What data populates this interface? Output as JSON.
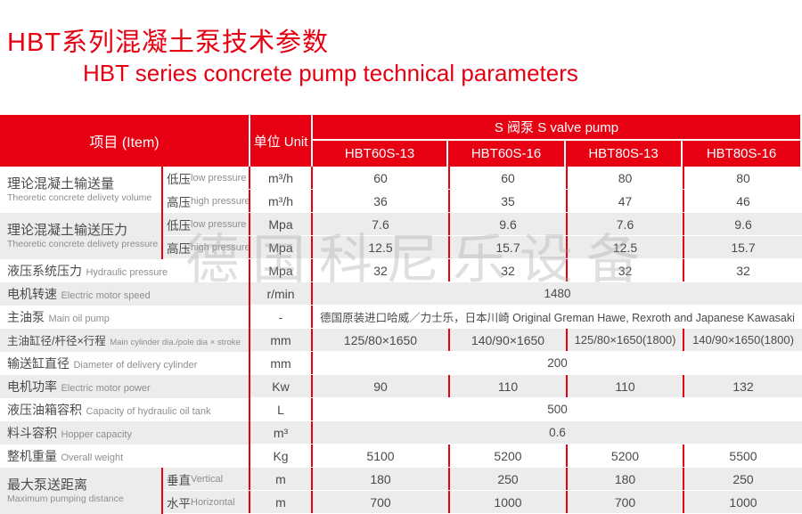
{
  "page": {
    "title_zh": "HBT系列混凝土泵技术参数",
    "title_en": "HBT series concrete pump technical parameters"
  },
  "watermark": "德国科尼乐设备",
  "colors": {
    "accent_red": "#e60012",
    "stripe_gray": "#ececec"
  },
  "table": {
    "header": {
      "item": "项目 (Item)",
      "unit": "单位 Unit",
      "group": "S 阀泵 S valve pump",
      "models": [
        "HBT60S-13",
        "HBT60S-16",
        "HBT80S-13",
        "HBT80S-16"
      ]
    },
    "groups": [
      {
        "zh": "理论混凝土输送量",
        "en": "Theoretic concrete delivety volume",
        "rows": [
          {
            "sub_zh": "低压",
            "sub_en": "low pressure",
            "unit": "m³/h",
            "values": [
              "60",
              "60",
              "80",
              "80"
            ]
          },
          {
            "sub_zh": "高压",
            "sub_en": "high pressure",
            "unit": "m³/h",
            "values": [
              "36",
              "35",
              "47",
              "46"
            ]
          }
        ]
      },
      {
        "zh": "理论混凝土输送压力",
        "en": "Theoretic concrete delivety pressure",
        "rows": [
          {
            "sub_zh": "低压",
            "sub_en": "low pressure",
            "unit": "Mpa",
            "values": [
              "7.6",
              "9.6",
              "7.6",
              "9.6"
            ]
          },
          {
            "sub_zh": "高压",
            "sub_en": "high pressure",
            "unit": "Mpa",
            "values": [
              "12.5",
              "15.7",
              "12.5",
              "15.7"
            ]
          }
        ]
      },
      {
        "zh": "液压系统压力",
        "en": "Hydraulic pressure",
        "rows": [
          {
            "unit": "Mpa",
            "values": [
              "32",
              "32",
              "32",
              "32"
            ]
          }
        ]
      },
      {
        "zh": "电机转速",
        "en": "Electric motor speed",
        "rows": [
          {
            "unit": "r/min",
            "span": "1480"
          }
        ]
      },
      {
        "zh": "主油泵",
        "en": "Main oil pump",
        "rows": [
          {
            "unit": "-",
            "span": "德国原装进口哈威／力士乐，日本川崎 Original Greman Hawe, Rexroth and Japanese Kawasaki"
          }
        ]
      },
      {
        "zh": "主油缸径/杆径×行程",
        "en": "Main cylinder dia./pole dia × stroke",
        "rows": [
          {
            "unit": "mm",
            "values": [
              "125/80×1650",
              "140/90×1650",
              "125/80×1650(1800)",
              "140/90×1650(1800)"
            ]
          }
        ]
      },
      {
        "zh": "输送缸直径",
        "en": "Diameter of delivery cylinder",
        "rows": [
          {
            "unit": "mm",
            "span": "200"
          }
        ]
      },
      {
        "zh": "电机功率",
        "en": "Electric motor power",
        "rows": [
          {
            "unit": "Kw",
            "values": [
              "90",
              "110",
              "110",
              "132"
            ]
          }
        ]
      },
      {
        "zh": "液压油箱容积",
        "en": "Capacity of hydraulic oil tank",
        "rows": [
          {
            "unit": "L",
            "span": "500"
          }
        ]
      },
      {
        "zh": "料斗容积",
        "en": "Hopper capacity",
        "rows": [
          {
            "unit": "m³",
            "span": "0.6"
          }
        ]
      },
      {
        "zh": "整机重量",
        "en": "Overall weight",
        "rows": [
          {
            "unit": "Kg",
            "values": [
              "5100",
              "5200",
              "5200",
              "5500"
            ]
          }
        ]
      },
      {
        "zh": "最大泵送距离",
        "en": "Maximum pumping distance",
        "rows": [
          {
            "sub_zh": "垂直",
            "sub_en": " Vertical",
            "unit": "m",
            "values": [
              "180",
              "250",
              "180",
              "250"
            ]
          },
          {
            "sub_zh": "水平",
            "sub_en": " Horizontal",
            "unit": "m",
            "values": [
              "700",
              "1000",
              "700",
              "1000"
            ]
          }
        ]
      }
    ]
  }
}
